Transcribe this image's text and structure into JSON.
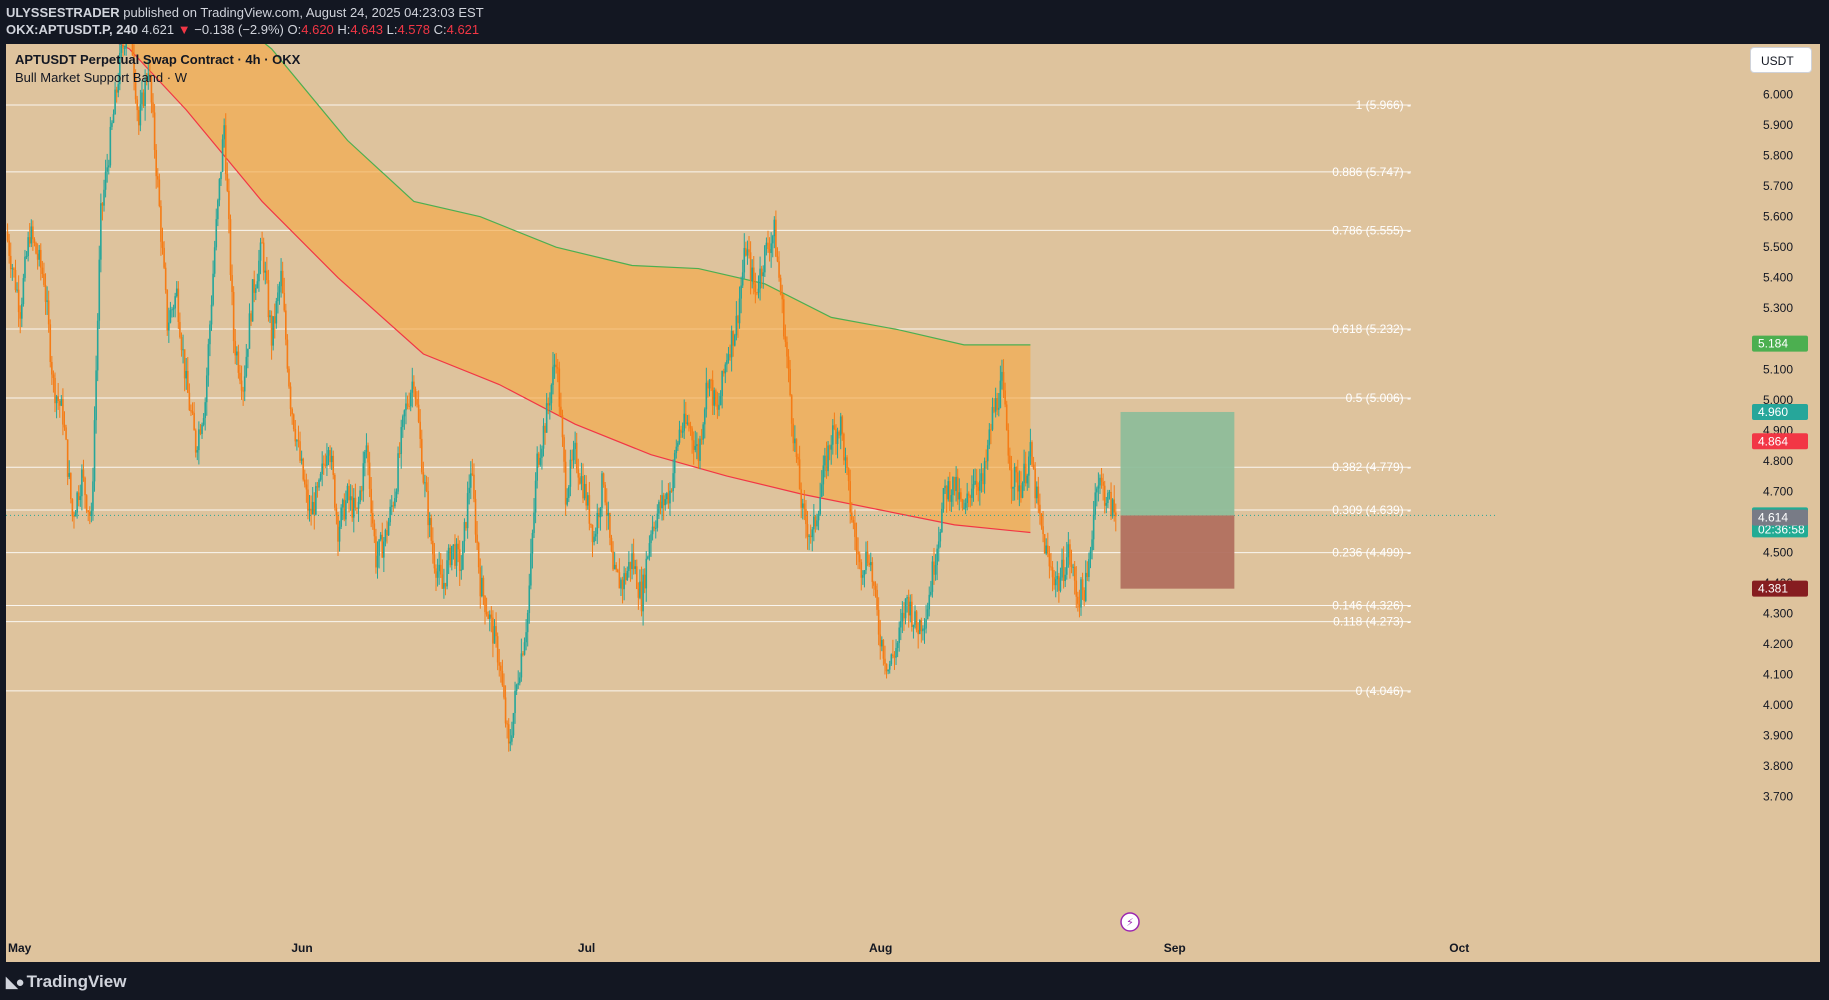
{
  "publisher": {
    "username": "ULYSSESTRADER",
    "rest": " published on TradingView.com, August 24, 2025 04:23:03 EST"
  },
  "ohlc": {
    "symbol": "OKX:APTUSDT.P, 240",
    "last": "4.621",
    "arrow": "▼",
    "change": "−0.138 (−2.9%)",
    "o_label": "O:",
    "o_value": "4.620",
    "h_label": "H:",
    "h_value": "4.643",
    "l_label": "L:",
    "l_value": "4.578",
    "c_label": "C:",
    "c_value": "4.621"
  },
  "legend": {
    "title": "APTUSDT Perpetual Swap Contract · 4h · OKX",
    "indicator": "Bull Market Support Band · W"
  },
  "currency_button": "USDT",
  "footer_logo": "TradingView",
  "colors": {
    "chart_bg": "#dec39d",
    "up_candle": "#26a69a",
    "down_candle": "#f57c16",
    "band_upper": "#4caf50",
    "band_lower": "#f23645",
    "band_fill": "#f5a947",
    "tp_zone": "#8ebd9a",
    "sl_zone": "#b1705f"
  },
  "chart_data": {
    "type": "candlestick",
    "ylim": [
      3.6,
      6.12
    ],
    "y_ticks": [
      "6.000",
      "5.900",
      "5.800",
      "5.700",
      "5.600",
      "5.500",
      "5.400",
      "5.300",
      "5.100",
      "5.000",
      "4.900",
      "4.800",
      "4.700",
      "4.500",
      "4.400",
      "4.300",
      "4.200",
      "4.100",
      "4.000",
      "3.900",
      "3.800",
      "3.700"
    ],
    "x_labels": [
      {
        "label": "May",
        "day": 0
      },
      {
        "label": "Jun",
        "day": 31
      },
      {
        "label": "Jul",
        "day": 61
      },
      {
        "label": "Aug",
        "day": 92
      },
      {
        "label": "Sep",
        "day": 123
      },
      {
        "label": "Oct",
        "day": 153
      }
    ],
    "x_range_days": [
      0,
      171
    ],
    "fib_levels": [
      {
        "level": "1",
        "value": 5.966,
        "label": "1 (5.966)"
      },
      {
        "level": "0.886",
        "value": 5.747,
        "label": "0.886 (5.747)"
      },
      {
        "level": "0.786",
        "value": 5.555,
        "label": "0.786 (5.555)"
      },
      {
        "level": "0.618",
        "value": 5.232,
        "label": "0.618 (5.232)"
      },
      {
        "level": "0.5",
        "value": 5.006,
        "label": "0.5 (5.006)"
      },
      {
        "level": "0.382",
        "value": 4.779,
        "label": "0.382 (4.779)"
      },
      {
        "level": "0.309",
        "value": 4.639,
        "label": "0.309 (4.639)"
      },
      {
        "level": "0.236",
        "value": 4.499,
        "label": "0.236 (4.499)"
      },
      {
        "level": "0.146",
        "value": 4.326,
        "label": "0.146 (4.326)"
      },
      {
        "level": "0.118",
        "value": 4.273,
        "label": "0.118 (4.273)"
      },
      {
        "level": "0",
        "value": 4.046,
        "label": "0 (4.046)"
      }
    ],
    "band_upper": [
      [
        0,
        6.55
      ],
      [
        20,
        6.35
      ],
      [
        28,
        6.15
      ],
      [
        36,
        5.85
      ],
      [
        43,
        5.65
      ],
      [
        50,
        5.6
      ],
      [
        58,
        5.5
      ],
      [
        66,
        5.44
      ],
      [
        73,
        5.43
      ],
      [
        80,
        5.38
      ],
      [
        87,
        5.27
      ],
      [
        94,
        5.23
      ],
      [
        101,
        5.18
      ],
      [
        108,
        5.18
      ]
    ],
    "band_lower": [
      [
        0,
        6.35
      ],
      [
        13,
        6.15
      ],
      [
        19,
        5.95
      ],
      [
        27,
        5.65
      ],
      [
        35,
        5.4
      ],
      [
        44,
        5.15
      ],
      [
        52,
        5.05
      ],
      [
        60,
        4.92
      ],
      [
        68,
        4.82
      ],
      [
        76,
        4.75
      ],
      [
        84,
        4.69
      ],
      [
        92,
        4.64
      ],
      [
        100,
        4.59
      ],
      [
        108,
        4.565
      ]
    ],
    "band_end_day": 108,
    "price_path": [
      [
        0,
        5.55
      ],
      [
        1.5,
        5.3
      ],
      [
        2.5,
        5.55
      ],
      [
        4,
        5.4
      ],
      [
        5,
        5.05
      ],
      [
        6,
        4.95
      ],
      [
        7,
        4.62
      ],
      [
        8,
        4.75
      ],
      [
        9,
        4.6
      ],
      [
        10,
        5.6
      ],
      [
        11,
        5.85
      ],
      [
        12,
        6.1
      ],
      [
        13,
        6.28
      ],
      [
        14,
        5.9
      ],
      [
        15,
        6.1
      ],
      [
        16,
        5.7
      ],
      [
        17,
        5.25
      ],
      [
        18,
        5.35
      ],
      [
        19,
        5.05
      ],
      [
        20,
        4.85
      ],
      [
        21,
        5.0
      ],
      [
        22,
        5.5
      ],
      [
        23,
        5.9
      ],
      [
        24,
        5.2
      ],
      [
        25,
        5.05
      ],
      [
        26,
        5.35
      ],
      [
        27,
        5.5
      ],
      [
        28,
        5.2
      ],
      [
        29,
        5.4
      ],
      [
        30,
        5.0
      ],
      [
        31,
        4.8
      ],
      [
        32,
        4.62
      ],
      [
        33,
        4.7
      ],
      [
        34,
        4.88
      ],
      [
        35,
        4.58
      ],
      [
        36,
        4.68
      ],
      [
        37,
        4.62
      ],
      [
        38,
        4.85
      ],
      [
        39,
        4.48
      ],
      [
        40,
        4.55
      ],
      [
        41,
        4.7
      ],
      [
        42,
        4.95
      ],
      [
        43,
        5.08
      ],
      [
        44,
        4.75
      ],
      [
        45,
        4.5
      ],
      [
        46,
        4.38
      ],
      [
        47,
        4.52
      ],
      [
        48,
        4.45
      ],
      [
        49,
        4.78
      ],
      [
        50,
        4.4
      ],
      [
        51,
        4.28
      ],
      [
        52,
        4.15
      ],
      [
        53,
        3.85
      ],
      [
        54,
        4.1
      ],
      [
        55,
        4.3
      ],
      [
        56,
        4.8
      ],
      [
        57,
        4.95
      ],
      [
        58,
        5.15
      ],
      [
        59,
        4.7
      ],
      [
        60,
        4.82
      ],
      [
        61,
        4.7
      ],
      [
        62,
        4.55
      ],
      [
        63,
        4.75
      ],
      [
        64,
        4.42
      ],
      [
        65,
        4.4
      ],
      [
        66,
        4.48
      ],
      [
        67,
        4.35
      ],
      [
        68,
        4.58
      ],
      [
        69,
        4.65
      ],
      [
        70,
        4.7
      ],
      [
        71,
        4.9
      ],
      [
        72,
        4.92
      ],
      [
        73,
        4.82
      ],
      [
        74,
        5.08
      ],
      [
        75,
        4.95
      ],
      [
        76,
        5.15
      ],
      [
        77,
        5.25
      ],
      [
        78,
        5.5
      ],
      [
        79,
        5.35
      ],
      [
        80,
        5.48
      ],
      [
        81,
        5.55
      ],
      [
        82,
        5.25
      ],
      [
        83,
        4.9
      ],
      [
        84,
        4.62
      ],
      [
        85,
        4.55
      ],
      [
        86,
        4.72
      ],
      [
        87,
        4.88
      ],
      [
        88,
        4.92
      ],
      [
        89,
        4.65
      ],
      [
        90,
        4.45
      ],
      [
        91,
        4.5
      ],
      [
        92,
        4.25
      ],
      [
        93,
        4.12
      ],
      [
        94,
        4.2
      ],
      [
        95,
        4.35
      ],
      [
        96,
        4.25
      ],
      [
        97,
        4.3
      ],
      [
        98,
        4.5
      ],
      [
        99,
        4.7
      ],
      [
        100,
        4.72
      ],
      [
        101,
        4.62
      ],
      [
        102,
        4.75
      ],
      [
        103,
        4.72
      ],
      [
        104,
        4.95
      ],
      [
        105,
        5.05
      ],
      [
        106,
        4.75
      ],
      [
        107,
        4.72
      ],
      [
        108,
        4.82
      ],
      [
        109,
        4.6
      ],
      [
        110,
        4.45
      ],
      [
        111,
        4.4
      ],
      [
        112,
        4.5
      ],
      [
        113,
        4.35
      ],
      [
        114,
        4.4
      ],
      [
        115,
        4.75
      ],
      [
        116,
        4.68
      ],
      [
        117,
        4.621
      ]
    ],
    "position": {
      "start_day": 117.5,
      "end_day": 129.5,
      "entry": 4.621,
      "target": 4.96,
      "stop": 4.381
    },
    "price_tags": [
      {
        "value": 5.184,
        "label": "5.184",
        "bg": "#4caf50",
        "fg": "#ffffff"
      },
      {
        "value": 4.96,
        "label": "4.960",
        "bg": "#26a69a",
        "fg": "#ffffff"
      },
      {
        "value": 4.864,
        "label": "4.864",
        "bg": "#f23645",
        "fg": "#ffffff"
      },
      {
        "value": 4.621,
        "label": "4.621",
        "sub": "02:36:58",
        "bg": "#22ab94",
        "fg": "#ffffff"
      },
      {
        "value": 4.614,
        "label": "4.614",
        "bg": "#787b86",
        "fg": "#ffffff"
      },
      {
        "value": 4.381,
        "label": "4.381",
        "bg": "#861d20",
        "fg": "#ffffff"
      }
    ]
  }
}
